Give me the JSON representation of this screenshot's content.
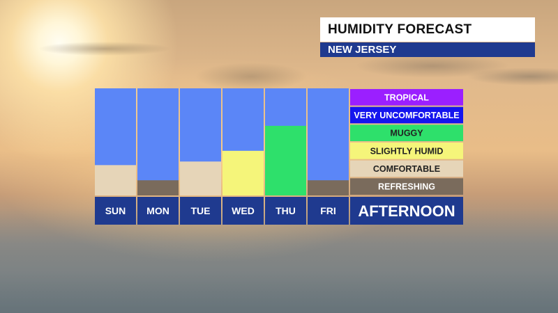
{
  "header": {
    "title": "HUMIDITY FORECAST",
    "subtitle": "NEW JERSEY"
  },
  "chart_data": {
    "type": "bar",
    "title": "HUMIDITY FORECAST",
    "subtitle": "NEW JERSEY",
    "period_label": "AFTERNOON",
    "categories": [
      "SUN",
      "MON",
      "TUE",
      "WED",
      "THU",
      "FRI"
    ],
    "y_scale": "ordinal comfort levels, 0 = bottom of REFRESHING band, 6 = top of TROPICAL band",
    "ylim": [
      0,
      6
    ],
    "values": [
      1.7,
      0.85,
      1.9,
      2.5,
      3.9,
      0.85
    ],
    "value_categories": [
      "COMFORTABLE",
      "REFRESHING",
      "COMFORTABLE",
      "SLIGHTLY HUMID",
      "MUGGY",
      "REFRESHING"
    ],
    "levels": [
      {
        "label": "REFRESHING",
        "color": "#7a6b5c",
        "text_color": "#ffffff"
      },
      {
        "label": "COMFORTABLE",
        "color": "#e6d5b8",
        "text_color": "#222222"
      },
      {
        "label": "SLIGHTLY HUMID",
        "color": "#f5f57a",
        "text_color": "#222222"
      },
      {
        "label": "MUGGY",
        "color": "#2ee06b",
        "text_color": "#222222"
      },
      {
        "label": "VERY UNCOMFORTABLE",
        "color": "#1515ee",
        "text_color": "#ffffff"
      },
      {
        "label": "TROPICAL",
        "color": "#9b1fff",
        "text_color": "#ffffff"
      }
    ],
    "column_background": "#5b86f7",
    "label_band_color": "#1f3a8f"
  }
}
